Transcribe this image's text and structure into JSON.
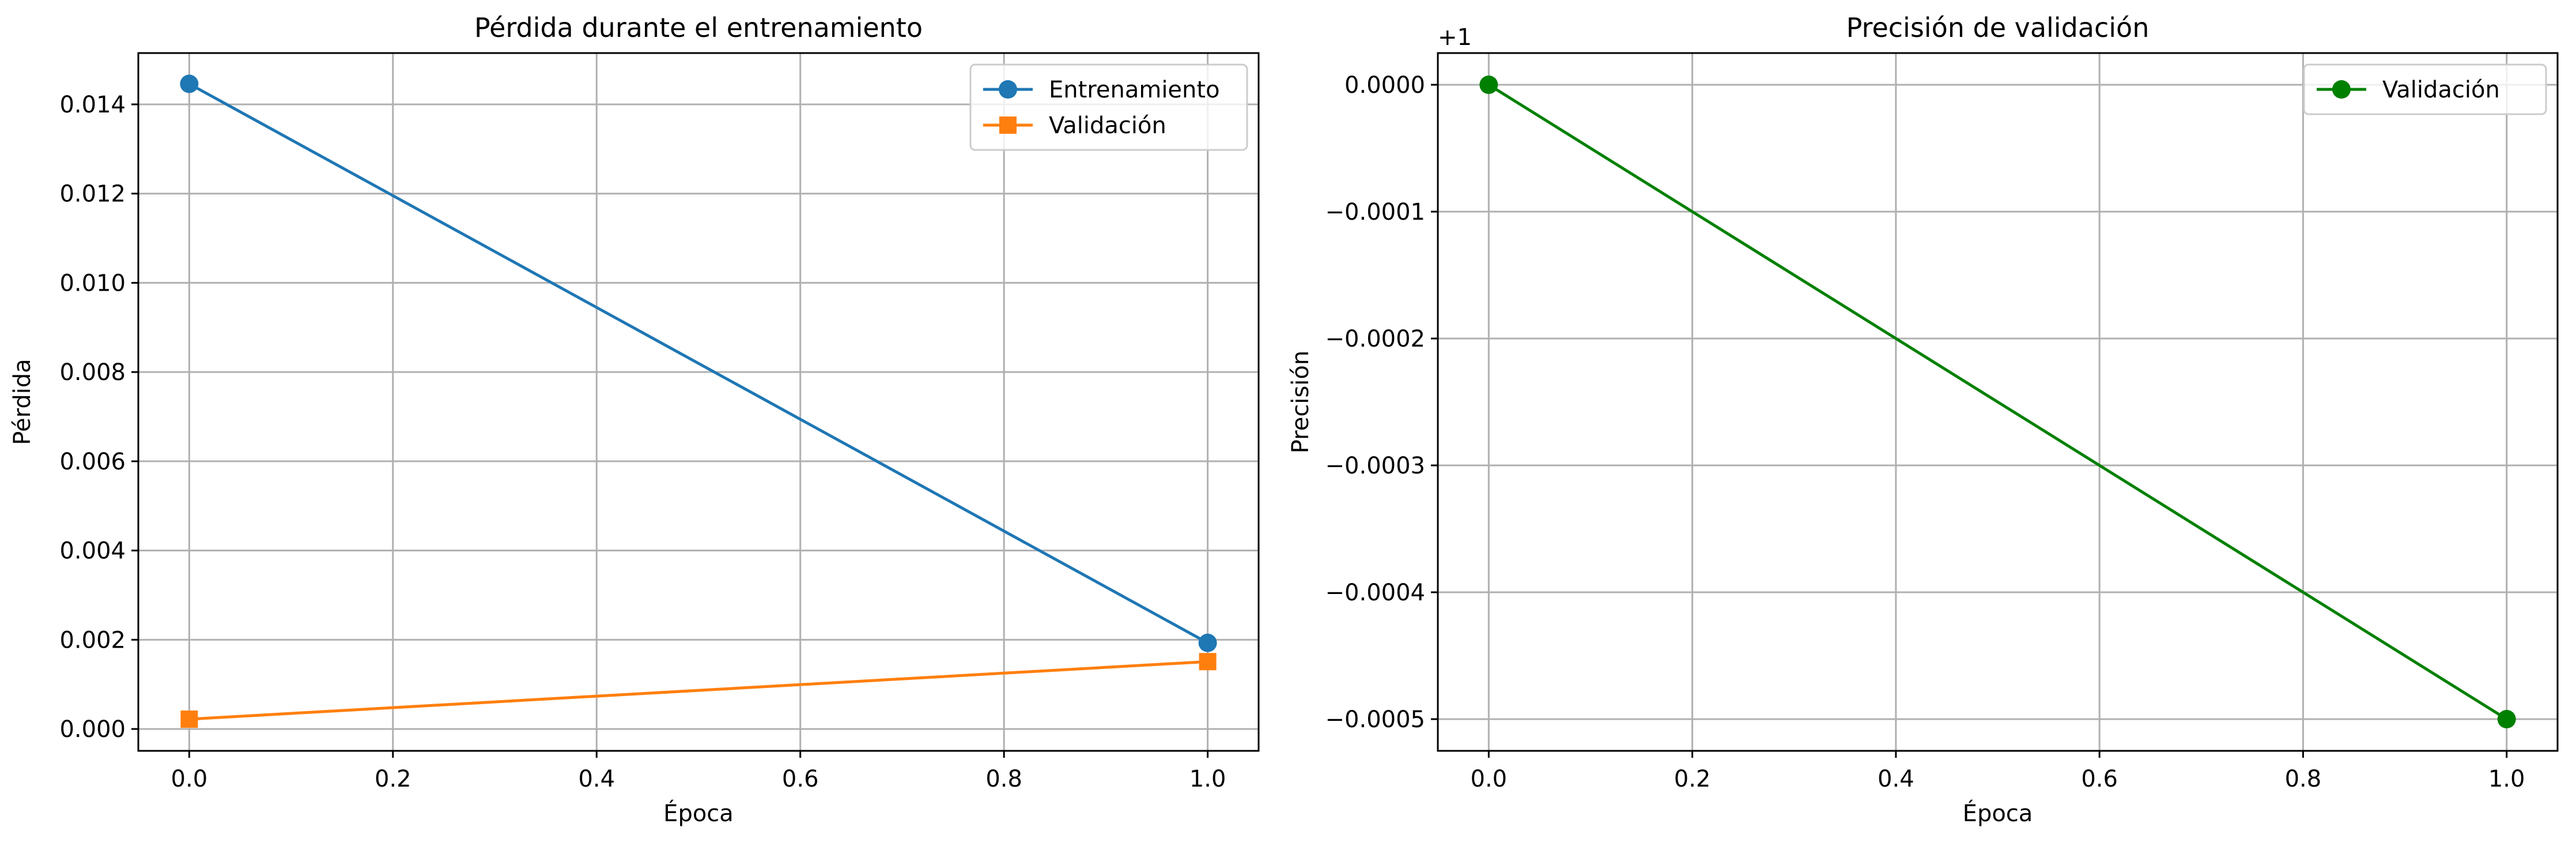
{
  "chart_data": [
    {
      "type": "line",
      "title": "Pérdida durante el entrenamiento",
      "xlabel": "Época",
      "ylabel": "Pérdida",
      "xlim": [
        -0.05,
        1.05
      ],
      "ylim": [
        -0.00049,
        0.01515
      ],
      "xticks": [
        0.0,
        0.2,
        0.4,
        0.6,
        0.8,
        1.0
      ],
      "xtick_labels": [
        "0.0",
        "0.2",
        "0.4",
        "0.6",
        "0.8",
        "1.0"
      ],
      "yticks": [
        0.0,
        0.002,
        0.004,
        0.006,
        0.008,
        0.01,
        0.012,
        0.014
      ],
      "ytick_labels": [
        "0.000",
        "0.002",
        "0.004",
        "0.006",
        "0.008",
        "0.010",
        "0.012",
        "0.014"
      ],
      "grid": true,
      "legend_position": "top-right",
      "series": [
        {
          "name": "Entrenamiento",
          "marker": "circle",
          "color": "#1f77b4",
          "x": [
            0,
            1
          ],
          "y": [
            0.01446,
            0.00193
          ]
        },
        {
          "name": "Validación",
          "marker": "square",
          "color": "#ff7f0e",
          "x": [
            0,
            1
          ],
          "y": [
            0.00022,
            0.00151
          ]
        }
      ]
    },
    {
      "type": "line",
      "title": "Precisión de validación",
      "xlabel": "Época",
      "ylabel": "Precisión",
      "offset_label": "+1",
      "xlim": [
        -0.05,
        1.05
      ],
      "ylim": [
        -0.000525,
        2.5e-05
      ],
      "xticks": [
        0.0,
        0.2,
        0.4,
        0.6,
        0.8,
        1.0
      ],
      "xtick_labels": [
        "0.0",
        "0.2",
        "0.4",
        "0.6",
        "0.8",
        "1.0"
      ],
      "yticks": [
        0.0,
        -0.0001,
        -0.0002,
        -0.0003,
        -0.0004,
        -0.0005
      ],
      "ytick_labels": [
        "0.0000",
        "−0.0001",
        "−0.0002",
        "−0.0003",
        "−0.0004",
        "−0.0005"
      ],
      "grid": true,
      "legend_position": "top-right",
      "series": [
        {
          "name": "Validación",
          "marker": "circle",
          "color": "#008000",
          "x": [
            0,
            1
          ],
          "y": [
            0.0,
            -0.0005
          ]
        }
      ]
    }
  ]
}
